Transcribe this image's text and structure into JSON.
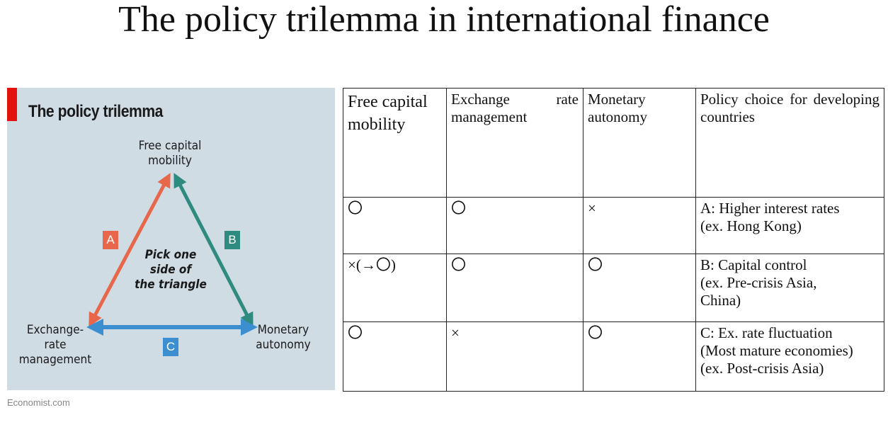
{
  "slide": {
    "title": "The policy trilemma in international finance"
  },
  "figure": {
    "title": "The policy trilemma",
    "vertex_top": [
      "Free capital",
      "mobility"
    ],
    "vertex_left": [
      "Exchange-",
      "rate",
      "management"
    ],
    "vertex_right": [
      "Monetary",
      "autonomy"
    ],
    "center": [
      "Pick one",
      "side of",
      "the triangle"
    ],
    "badges": {
      "a": "A",
      "b": "B",
      "c": "C"
    },
    "colors": {
      "a": "#e8674a",
      "b": "#2f8a80",
      "c": "#3b8fd0",
      "background": "#cfdce4",
      "accent": "#e3120b"
    },
    "source": "Economist.com"
  },
  "table": {
    "headers": [
      "Free capital mobility",
      "Exchange rate management",
      "Monetary autonomy",
      "Policy choice for developing countries"
    ],
    "rows": [
      {
        "free_capital": "〇",
        "exchange_rate": "〇",
        "monetary": "×",
        "policy": [
          "A: Higher interest rates",
          "(ex. Hong Kong)"
        ]
      },
      {
        "free_capital": "×(→〇)",
        "exchange_rate": "〇",
        "monetary": "〇",
        "policy": [
          "B: Capital control",
          "(ex. Pre-crisis Asia,",
          "China)"
        ]
      },
      {
        "free_capital": "〇",
        "exchange_rate": "×",
        "monetary": "〇",
        "policy": [
          "C: Ex. rate fluctuation",
          "(Most mature economies)",
          "(ex. Post-crisis Asia)"
        ]
      }
    ]
  }
}
